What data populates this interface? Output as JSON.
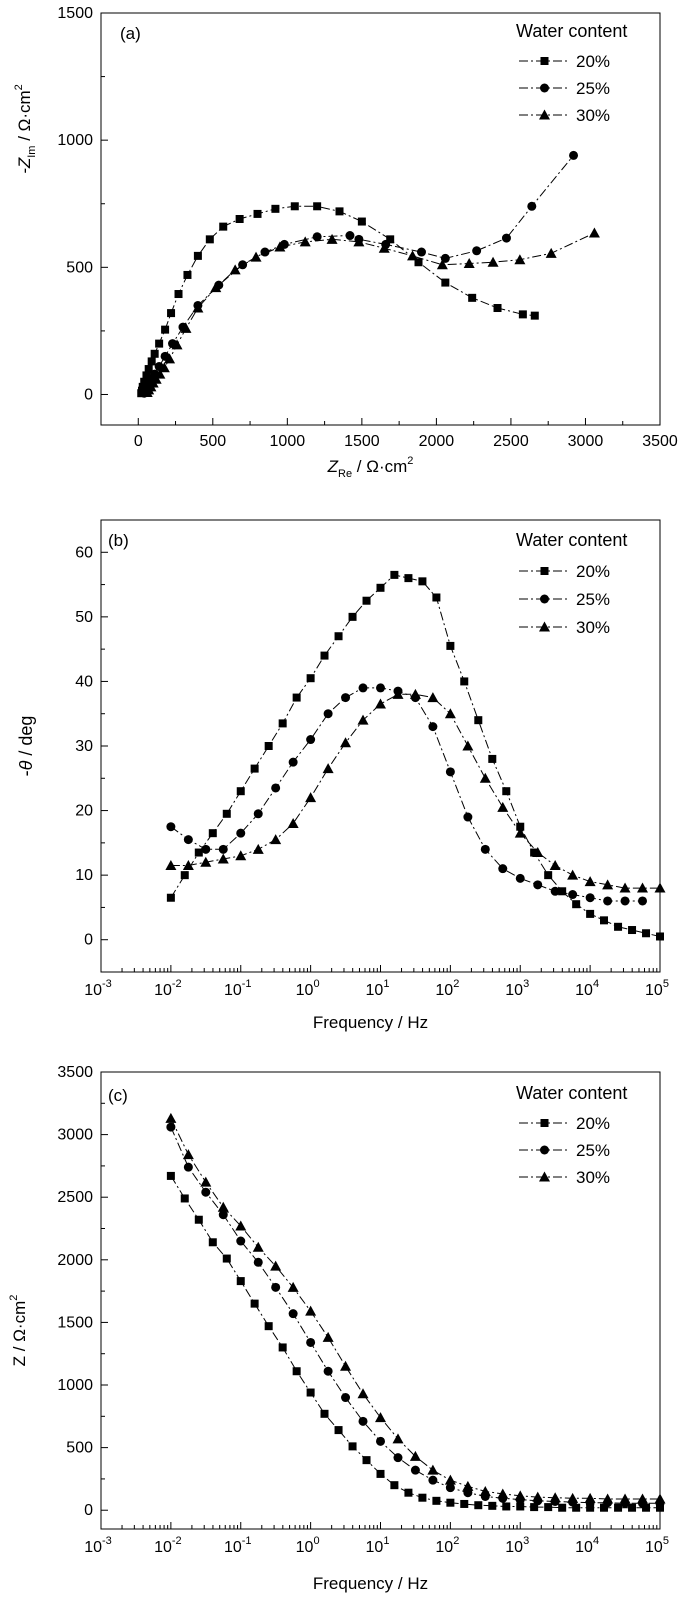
{
  "chart_data": [
    {
      "type": "scatter",
      "panel_label": "(a)",
      "xlabel_main": "Z",
      "xlabel_sub": "Re",
      "xlabel_rest": " / Ω·cm",
      "xlabel_sup": "2",
      "ylabel_main": "-Z",
      "ylabel_sub": "Im",
      "ylabel_rest": " / Ω·cm",
      "ylabel_sup": "2",
      "xlim": [
        -250,
        3500
      ],
      "ylim": [
        -120,
        1500
      ],
      "xticks": [
        0,
        500,
        1000,
        1500,
        2000,
        2500,
        3000,
        3500
      ],
      "xtick_labels": [
        "0",
        "500",
        "1000",
        "1500",
        "2000",
        "2500",
        "3000",
        "3500"
      ],
      "yticks": [
        0,
        500,
        1000,
        1500
      ],
      "ytick_labels": [
        "0",
        "500",
        "1000",
        "1500"
      ],
      "legend_title": "Water content",
      "legend_position": "top-right",
      "series": [
        {
          "name": "20%",
          "marker": "square",
          "line_style": "dashdot",
          "x": [
            20,
            25,
            30,
            40,
            55,
            70,
            90,
            110,
            140,
            180,
            220,
            270,
            330,
            400,
            480,
            570,
            680,
            800,
            920,
            1050,
            1200,
            1350,
            1500,
            1690,
            1880,
            2060,
            2240,
            2410,
            2580,
            2660
          ],
          "y": [
            5,
            15,
            30,
            50,
            75,
            100,
            130,
            160,
            200,
            255,
            320,
            395,
            470,
            545,
            610,
            660,
            690,
            710,
            730,
            740,
            740,
            720,
            680,
            610,
            520,
            440,
            380,
            340,
            315,
            310
          ]
        },
        {
          "name": "25%",
          "marker": "circle",
          "line_style": "dashdot",
          "x": [
            40,
            50,
            60,
            75,
            90,
            110,
            140,
            180,
            230,
            300,
            400,
            540,
            700,
            850,
            980,
            1200,
            1420,
            1480,
            1660,
            1900,
            2060,
            2270,
            2470,
            2640,
            2920
          ],
          "y": [
            5,
            15,
            30,
            45,
            60,
            80,
            110,
            150,
            200,
            265,
            350,
            430,
            510,
            560,
            590,
            620,
            625,
            610,
            590,
            560,
            535,
            565,
            615,
            740,
            940
          ]
        },
        {
          "name": "30%",
          "marker": "triangle",
          "line_style": "dashdot",
          "x": [
            60,
            70,
            85,
            100,
            120,
            145,
            175,
            210,
            260,
            320,
            400,
            520,
            650,
            790,
            950,
            1120,
            1300,
            1480,
            1650,
            1840,
            2040,
            2220,
            2380,
            2560,
            2770,
            3060
          ],
          "y": [
            8,
            18,
            30,
            45,
            60,
            80,
            105,
            140,
            195,
            260,
            340,
            420,
            490,
            540,
            580,
            600,
            610,
            600,
            575,
            545,
            510,
            515,
            520,
            530,
            555,
            635
          ]
        }
      ]
    },
    {
      "type": "scatter",
      "panel_label": "(b)",
      "xlabel": "Frequency / Hz",
      "ylabel_prefix": "-",
      "ylabel_italic": "θ",
      "ylabel_rest": " / deg",
      "xscale": "log",
      "xlim": [
        0.001,
        100000
      ],
      "ylim": [
        -5,
        65
      ],
      "xtick_exponents": [
        -3,
        -2,
        -1,
        0,
        1,
        2,
        3,
        4,
        5
      ],
      "xtick_base": "10",
      "yticks": [
        0,
        10,
        20,
        30,
        40,
        50,
        60
      ],
      "ytick_labels": [
        "0",
        "10",
        "20",
        "30",
        "40",
        "50",
        "60"
      ],
      "legend_title": "Water content",
      "legend_position": "top-right",
      "series": [
        {
          "name": "20%",
          "marker": "square",
          "line_style": "dashdot",
          "x": [
            0.01,
            0.0158,
            0.0251,
            0.0398,
            0.0631,
            0.1,
            0.158,
            0.251,
            0.398,
            0.631,
            1,
            1.58,
            2.51,
            3.98,
            6.31,
            10,
            15.8,
            25.1,
            39.8,
            63.1,
            100,
            158,
            251,
            398,
            631,
            1000,
            1580,
            2510,
            3980,
            6310,
            10000,
            15800,
            25100,
            39800,
            63100,
            100000
          ],
          "y": [
            6.5,
            10,
            13.5,
            16.5,
            19.5,
            23,
            26.5,
            30,
            33.5,
            37.5,
            40.5,
            44,
            47,
            50,
            52.5,
            54.5,
            56.5,
            56,
            55.5,
            53,
            45.5,
            40,
            34,
            28,
            23,
            17.5,
            13.5,
            10,
            7.5,
            5.5,
            4,
            3,
            2,
            1.5,
            1,
            0.5
          ]
        },
        {
          "name": "25%",
          "marker": "circle",
          "line_style": "dashdot",
          "x": [
            0.01,
            0.0178,
            0.0316,
            0.0562,
            0.1,
            0.178,
            0.316,
            0.562,
            1,
            1.78,
            3.16,
            5.62,
            10,
            17.8,
            31.6,
            56.2,
            100,
            178,
            316,
            562,
            1000,
            1780,
            3160,
            5620,
            10000,
            17800,
            31600,
            56200
          ],
          "y": [
            17.5,
            15.5,
            14,
            14,
            16.5,
            19.5,
            23.5,
            27.5,
            31,
            35,
            37.5,
            39,
            39,
            38.5,
            37.5,
            33,
            26,
            19,
            14,
            11,
            9.5,
            8.5,
            7.5,
            7,
            6.5,
            6,
            6,
            6
          ]
        },
        {
          "name": "30%",
          "marker": "triangle",
          "line_style": "dashdot",
          "x": [
            0.01,
            0.0178,
            0.0316,
            0.0562,
            0.1,
            0.178,
            0.316,
            0.562,
            1,
            1.78,
            3.16,
            5.62,
            10,
            17.8,
            31.6,
            56.2,
            100,
            178,
            316,
            562,
            1000,
            1780,
            3160,
            5620,
            10000,
            17800,
            31600,
            56200,
            100000
          ],
          "y": [
            11.5,
            11.5,
            12,
            12.5,
            13,
            14,
            15.5,
            18,
            22,
            26.5,
            30.5,
            34,
            36.5,
            38,
            38,
            37.5,
            35,
            30,
            25,
            20.5,
            16.5,
            13.5,
            11.5,
            10,
            9,
            8.5,
            8,
            8,
            8
          ]
        }
      ]
    },
    {
      "type": "scatter",
      "panel_label": "(c)",
      "xlabel": "Frequency / Hz",
      "ylabel_main": "Z / Ω·cm",
      "ylabel_sup": "2",
      "xscale": "log",
      "xlim": [
        0.001,
        100000
      ],
      "ylim": [
        -150,
        3500
      ],
      "xtick_exponents": [
        -3,
        -2,
        -1,
        0,
        1,
        2,
        3,
        4,
        5
      ],
      "xtick_base": "10",
      "yticks": [
        0,
        500,
        1000,
        1500,
        2000,
        2500,
        3000,
        3500
      ],
      "ytick_labels": [
        "0",
        "500",
        "1000",
        "1500",
        "2000",
        "2500",
        "3000",
        "3500"
      ],
      "legend_title": "Water content",
      "legend_position": "top-right",
      "series": [
        {
          "name": "20%",
          "marker": "square",
          "line_style": "dashdot",
          "x": [
            0.01,
            0.0158,
            0.0251,
            0.0398,
            0.0631,
            0.1,
            0.158,
            0.251,
            0.398,
            0.631,
            1,
            1.58,
            2.51,
            3.98,
            6.31,
            10,
            15.8,
            25.1,
            39.8,
            63.1,
            100,
            158,
            251,
            398,
            631,
            1000,
            1580,
            2510,
            3980,
            6310,
            10000,
            15800,
            25100,
            39800,
            63100,
            100000
          ],
          "y": [
            2670,
            2490,
            2320,
            2140,
            2010,
            1830,
            1650,
            1470,
            1300,
            1110,
            940,
            770,
            640,
            510,
            400,
            290,
            200,
            140,
            100,
            75,
            60,
            50,
            40,
            35,
            30,
            30,
            25,
            25,
            20,
            20,
            20,
            20,
            20,
            20,
            20,
            20
          ]
        },
        {
          "name": "25%",
          "marker": "circle",
          "line_style": "dashdot",
          "x": [
            0.01,
            0.0178,
            0.0316,
            0.0562,
            0.1,
            0.178,
            0.316,
            0.562,
            1,
            1.78,
            3.16,
            5.62,
            10,
            17.8,
            31.6,
            56.2,
            100,
            178,
            316,
            562,
            1000,
            1780,
            3160,
            5620,
            10000,
            17800,
            31600,
            56200,
            100000
          ],
          "y": [
            3060,
            2740,
            2540,
            2360,
            2150,
            1980,
            1780,
            1570,
            1340,
            1110,
            900,
            710,
            550,
            420,
            320,
            240,
            180,
            140,
            110,
            95,
            85,
            75,
            70,
            65,
            60,
            60,
            55,
            55,
            55
          ]
        },
        {
          "name": "30%",
          "marker": "triangle",
          "line_style": "dashdot",
          "x": [
            0.01,
            0.0178,
            0.0316,
            0.0562,
            0.1,
            0.178,
            0.316,
            0.562,
            1,
            1.78,
            3.16,
            5.62,
            10,
            17.8,
            31.6,
            56.2,
            100,
            178,
            316,
            562,
            1000,
            1780,
            3160,
            5620,
            10000,
            17800,
            31600,
            56200,
            100000
          ],
          "y": [
            3130,
            2840,
            2620,
            2420,
            2270,
            2100,
            1950,
            1780,
            1590,
            1380,
            1150,
            930,
            740,
            570,
            430,
            320,
            240,
            190,
            150,
            130,
            115,
            105,
            100,
            95,
            95,
            90,
            90,
            90,
            90
          ]
        }
      ]
    }
  ]
}
